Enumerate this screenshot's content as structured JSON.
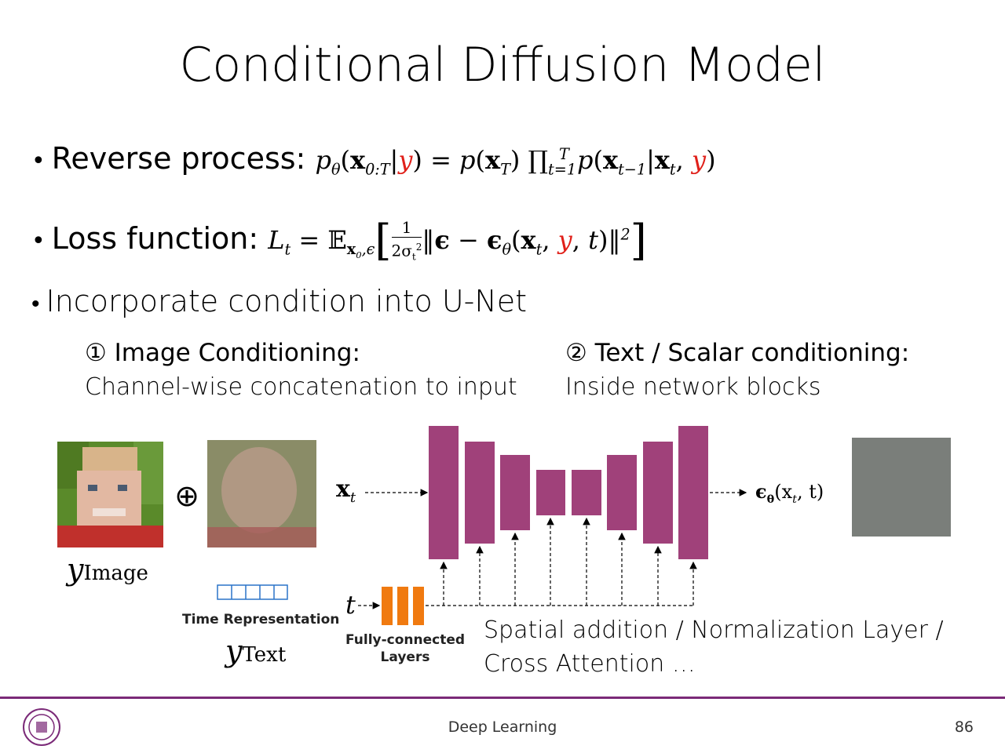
{
  "slide": {
    "title": "Conditional Diffusion Model",
    "bullets": {
      "reverse_label": "Reverse process:",
      "loss_label": "Loss function:",
      "incorporate": "Incorporate condition into U-Net"
    },
    "condition1": {
      "title": "① Image Conditioning:",
      "subtitle": "Channel-wise concatenation to input"
    },
    "condition2": {
      "title": "② Text / Scalar conditioning:",
      "subtitle": "Inside network blocks"
    },
    "diagram": {
      "oplus": "⊕",
      "y_image_base": "y",
      "y_image_sub": "Image",
      "y_text_base": "y",
      "y_text_sub": "Text",
      "time_repr": "Time Representation",
      "fc_layers_line1": "Fully-connected",
      "fc_layers_line2": "Layers",
      "t_symbol": "t",
      "x_t": "x",
      "x_t_sub": "t",
      "eps_output": "ϵ",
      "eps_output_args": "(x",
      "eps_output_end": ", t)",
      "spatial_line1": "Spatial addition / Normalization Layer /",
      "spatial_line2": "Cross Attention …"
    },
    "footer": {
      "course": "Deep Learning",
      "page": "86"
    },
    "colors": {
      "unet_block": "#a0417a",
      "fc_block": "#f07a10",
      "time_repr_border": "#2a73c8",
      "accent_bar": "#7b2a78",
      "condition_red": "#e0201a"
    }
  }
}
